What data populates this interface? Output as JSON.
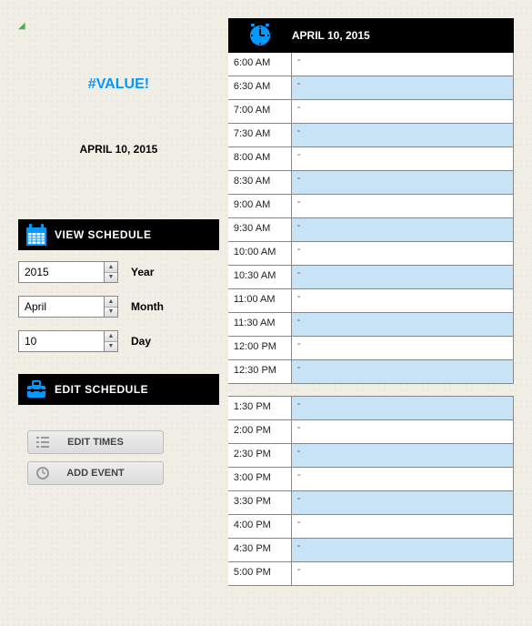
{
  "corner_mark": "◢",
  "error_text": "#VALUE!",
  "date_heading": "APRIL 10, 2015",
  "view": {
    "title": "VIEW SCHEDULE",
    "year": {
      "value": "2015",
      "label": "Year"
    },
    "month": {
      "value": "April",
      "label": "Month"
    },
    "day": {
      "value": "10",
      "label": "Day"
    }
  },
  "edit": {
    "title": "EDIT SCHEDULE",
    "edit_times": "EDIT TIMES",
    "add_event": "ADD EVENT"
  },
  "schedule": {
    "header": "APRIL 10, 2015",
    "rows": [
      {
        "time": "6:00 AM",
        "event": "-",
        "alt": false
      },
      {
        "time": "6:30 AM",
        "event": "-",
        "alt": true
      },
      {
        "time": "7:00 AM",
        "event": "-",
        "alt": false
      },
      {
        "time": "7:30 AM",
        "event": "-",
        "alt": true
      },
      {
        "time": "8:00 AM",
        "event": "-",
        "alt": false
      },
      {
        "time": "8:30 AM",
        "event": "-",
        "alt": true
      },
      {
        "time": "9:00 AM",
        "event": "-",
        "alt": false
      },
      {
        "time": "9:30 AM",
        "event": "-",
        "alt": true
      },
      {
        "time": "10:00 AM",
        "event": "-",
        "alt": false
      },
      {
        "time": "10:30 AM",
        "event": "-",
        "alt": true
      },
      {
        "time": "11:00 AM",
        "event": "-",
        "alt": false
      },
      {
        "time": "11:30 AM",
        "event": "-",
        "alt": true
      },
      {
        "time": "12:00 PM",
        "event": "-",
        "alt": false
      },
      {
        "time": "12:30 PM",
        "event": "-",
        "alt": true
      },
      {
        "time": "",
        "event": "",
        "gap": true
      },
      {
        "time": "1:30 PM",
        "event": "-",
        "alt": true
      },
      {
        "time": "2:00 PM",
        "event": "-",
        "alt": false
      },
      {
        "time": "2:30 PM",
        "event": "-",
        "alt": true
      },
      {
        "time": "3:00 PM",
        "event": "-",
        "alt": false
      },
      {
        "time": "3:30 PM",
        "event": "-",
        "alt": true
      },
      {
        "time": "4:00 PM",
        "event": "-",
        "alt": false
      },
      {
        "time": "4:30 PM",
        "event": "-",
        "alt": true
      },
      {
        "time": "5:00 PM",
        "event": "-",
        "alt": false
      }
    ]
  },
  "colors": {
    "accent": "#0099ff",
    "alt_row": "#c7e3f5",
    "header_bg": "#000000",
    "border": "#888888"
  }
}
